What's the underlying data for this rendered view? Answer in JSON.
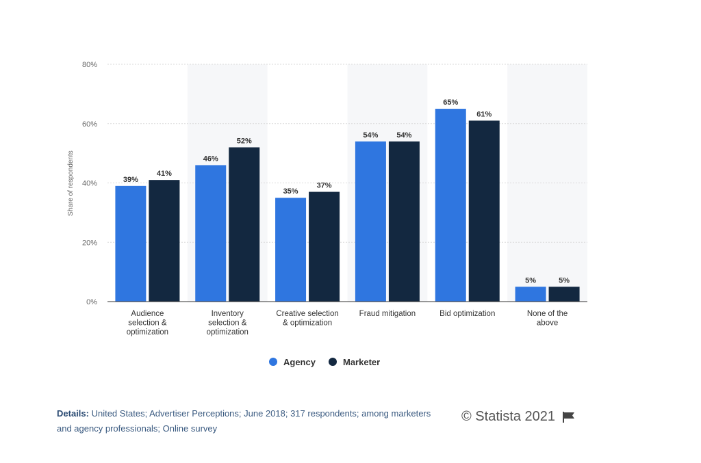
{
  "chart_data": {
    "type": "bar",
    "ylabel": "Share of respondents",
    "xlabel": "",
    "ylim": [
      0,
      80
    ],
    "yticks": [
      "0%",
      "20%",
      "40%",
      "60%",
      "80%"
    ],
    "ytick_values": [
      0,
      20,
      40,
      60,
      80
    ],
    "grid": true,
    "legend_position": "bottom",
    "categories": [
      [
        "Audience",
        "selection &",
        "optimization"
      ],
      [
        "Inventory",
        "selection &",
        "optimization"
      ],
      [
        "Creative selection",
        "& optimization"
      ],
      [
        "Fraud mitigation"
      ],
      [
        "Bid optimization"
      ],
      [
        "None of the",
        "above"
      ]
    ],
    "series": [
      {
        "name": "Agency",
        "color": "#2f76e0",
        "values": [
          39,
          46,
          35,
          54,
          65,
          5
        ],
        "labels": [
          "39%",
          "46%",
          "35%",
          "54%",
          "65%",
          "5%"
        ]
      },
      {
        "name": "Marketer",
        "color": "#132840",
        "values": [
          41,
          52,
          37,
          54,
          61,
          5
        ],
        "labels": [
          "41%",
          "52%",
          "37%",
          "54%",
          "61%",
          "5%"
        ]
      }
    ]
  },
  "footer": {
    "details_label": "Details:",
    "details_text": " United States; Advertiser Perceptions; June 2018; 317 respondents; among marketers and agency professionals; Online survey",
    "copyright": "© Statista 2021",
    "flag_icon": "flag-icon"
  }
}
